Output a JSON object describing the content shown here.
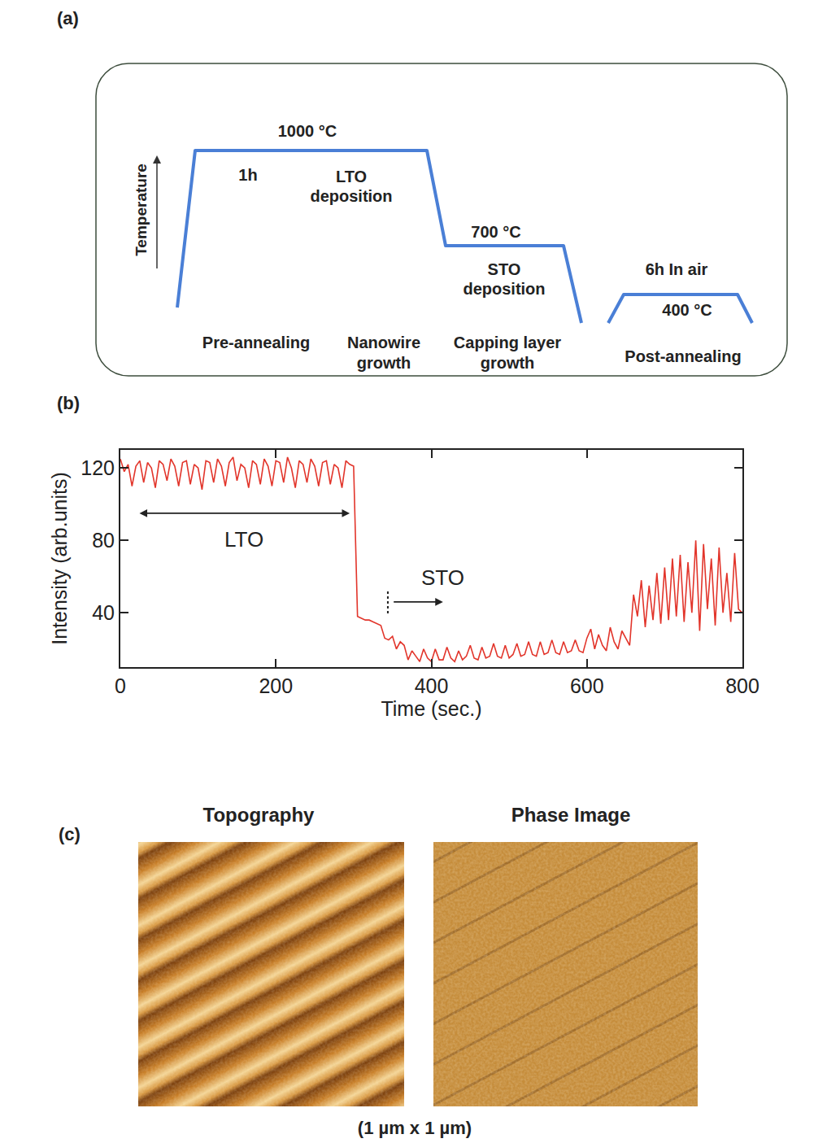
{
  "panels": {
    "a": "(a)",
    "b": "(b)",
    "c": "(c)"
  },
  "diagram": {
    "axis_label": "Temperature",
    "plateaus": [
      {
        "temp": "1000 °C",
        "time": "1h",
        "process": [
          "LTO",
          "deposition"
        ]
      },
      {
        "temp": "700 °C",
        "process": [
          "STO",
          "deposition"
        ]
      },
      {
        "temp": "400 °C",
        "time": "6h In air"
      }
    ],
    "stages": [
      [
        "Pre-annealing"
      ],
      [
        "Nanowire",
        "growth"
      ],
      [
        "Capping layer",
        "growth"
      ],
      [
        "Post-annealing"
      ]
    ]
  },
  "chart_data": {
    "type": "line",
    "x_label": "Time (sec.)",
    "y_label": "Intensity (arb.units)",
    "xlim": [
      0,
      800
    ],
    "xticks": [
      0,
      200,
      400,
      600,
      800
    ],
    "ylim": [
      10,
      130
    ],
    "yticks": [
      40,
      80,
      120
    ],
    "grid": false,
    "color": "#e2352b",
    "annotations": [
      {
        "text": "LTO",
        "span": [
          23,
          295
        ],
        "y": 95
      },
      {
        "text": "STO",
        "x": 344,
        "arrow_to": 415,
        "y": 46
      }
    ],
    "x": [
      0,
      5,
      10,
      15,
      20,
      25,
      30,
      35,
      40,
      45,
      50,
      55,
      60,
      65,
      70,
      75,
      80,
      85,
      90,
      95,
      100,
      105,
      110,
      115,
      120,
      125,
      130,
      135,
      140,
      145,
      150,
      155,
      160,
      165,
      170,
      175,
      180,
      185,
      190,
      195,
      200,
      205,
      210,
      215,
      220,
      225,
      230,
      235,
      240,
      245,
      250,
      255,
      260,
      265,
      270,
      275,
      280,
      285,
      290,
      295,
      300,
      305,
      310,
      315,
      320,
      325,
      330,
      335,
      340,
      345,
      350,
      355,
      360,
      365,
      370,
      375,
      380,
      385,
      390,
      395,
      400,
      405,
      410,
      415,
      420,
      425,
      430,
      435,
      440,
      445,
      450,
      455,
      460,
      465,
      470,
      475,
      480,
      485,
      490,
      495,
      500,
      505,
      510,
      515,
      520,
      525,
      530,
      535,
      540,
      545,
      550,
      555,
      560,
      565,
      570,
      575,
      580,
      585,
      590,
      595,
      600,
      605,
      610,
      615,
      620,
      625,
      630,
      635,
      640,
      645,
      650,
      655,
      660,
      665,
      670,
      675,
      680,
      685,
      690,
      695,
      700,
      705,
      710,
      715,
      720,
      725,
      730,
      735,
      740,
      745,
      750,
      755,
      760,
      765,
      770,
      775,
      780,
      785,
      790,
      795,
      800
    ],
    "values": [
      125,
      118,
      122,
      110,
      121,
      124,
      112,
      123,
      120,
      109,
      124,
      122,
      113,
      125,
      121,
      110,
      123,
      124,
      111,
      122,
      120,
      108,
      124,
      123,
      112,
      125,
      121,
      110,
      123,
      126,
      113,
      122,
      120,
      109,
      124,
      122,
      111,
      125,
      121,
      110,
      124,
      123,
      112,
      126,
      120,
      109,
      124,
      122,
      112,
      125,
      121,
      110,
      123,
      124,
      111,
      122,
      120,
      109,
      124,
      122,
      121,
      38,
      37,
      36,
      36,
      35,
      34,
      33,
      26,
      25,
      27,
      20,
      24,
      22,
      14,
      19,
      16,
      13,
      20,
      15,
      13,
      20,
      14,
      14,
      21,
      15,
      13,
      19,
      14,
      16,
      22,
      15,
      14,
      21,
      15,
      16,
      23,
      16,
      15,
      22,
      15,
      17,
      23,
      16,
      17,
      24,
      17,
      16,
      24,
      17,
      18,
      25,
      18,
      17,
      24,
      18,
      19,
      25,
      19,
      18,
      26,
      31,
      20,
      28,
      22,
      19,
      32,
      24,
      20,
      30,
      26,
      22,
      50,
      38,
      58,
      32,
      55,
      36,
      62,
      34,
      65,
      36,
      70,
      38,
      72,
      35,
      68,
      40,
      80,
      30,
      78,
      42,
      70,
      33,
      76,
      40,
      62,
      35,
      73,
      42,
      40
    ]
  },
  "images": {
    "titles": [
      "Topography",
      "Phase Image"
    ],
    "caption": "(1 µm x 1 µm)"
  }
}
